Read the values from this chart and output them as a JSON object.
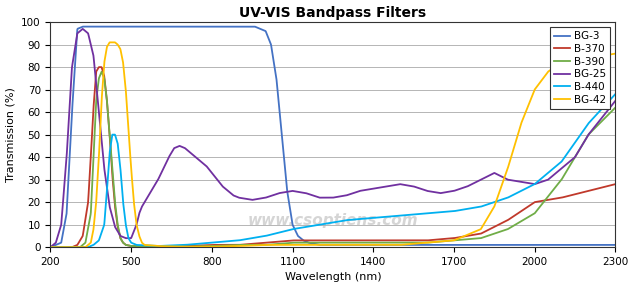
{
  "title": "UV-VIS Bandpass Filters",
  "xlabel": "Wavelength (nm)",
  "ylabel": "Transmission (%)",
  "xlim": [
    200,
    2300
  ],
  "ylim": [
    0,
    100
  ],
  "xticks": [
    200,
    500,
    800,
    1100,
    1400,
    1700,
    2000,
    2300
  ],
  "yticks": [
    0,
    10,
    20,
    30,
    40,
    50,
    60,
    70,
    80,
    90,
    100
  ],
  "background_color": "#ffffff",
  "watermark": "www.csoptiens.com",
  "series": {
    "BG-3": {
      "color": "#4472C4",
      "points": [
        [
          200,
          0
        ],
        [
          240,
          2
        ],
        [
          260,
          15
        ],
        [
          280,
          60
        ],
        [
          300,
          97
        ],
        [
          320,
          98
        ],
        [
          340,
          98
        ],
        [
          360,
          98
        ],
        [
          380,
          98
        ],
        [
          400,
          98
        ],
        [
          420,
          98
        ],
        [
          440,
          98
        ],
        [
          460,
          98
        ],
        [
          480,
          98
        ],
        [
          500,
          98
        ],
        [
          520,
          98
        ],
        [
          540,
          98
        ],
        [
          560,
          98
        ],
        [
          580,
          98
        ],
        [
          600,
          98
        ],
        [
          620,
          98
        ],
        [
          640,
          98
        ],
        [
          660,
          98
        ],
        [
          680,
          98
        ],
        [
          700,
          98
        ],
        [
          720,
          98
        ],
        [
          740,
          98
        ],
        [
          760,
          98
        ],
        [
          780,
          98
        ],
        [
          800,
          98
        ],
        [
          820,
          98
        ],
        [
          840,
          98
        ],
        [
          860,
          98
        ],
        [
          880,
          98
        ],
        [
          900,
          98
        ],
        [
          920,
          98
        ],
        [
          940,
          98
        ],
        [
          960,
          98
        ],
        [
          980,
          97
        ],
        [
          1000,
          96
        ],
        [
          1020,
          90
        ],
        [
          1040,
          75
        ],
        [
          1060,
          50
        ],
        [
          1080,
          25
        ],
        [
          1100,
          10
        ],
        [
          1120,
          5
        ],
        [
          1140,
          3
        ],
        [
          1160,
          2
        ],
        [
          1200,
          1
        ],
        [
          1300,
          1
        ],
        [
          1400,
          1
        ],
        [
          1500,
          1
        ],
        [
          1600,
          1
        ],
        [
          1700,
          1
        ],
        [
          1800,
          1
        ],
        [
          1900,
          1
        ],
        [
          2000,
          1
        ],
        [
          2100,
          1
        ],
        [
          2200,
          1
        ],
        [
          2300,
          1
        ]
      ]
    },
    "B-370": {
      "color": "#C0392B",
      "points": [
        [
          200,
          0
        ],
        [
          280,
          0
        ],
        [
          300,
          1
        ],
        [
          320,
          5
        ],
        [
          340,
          20
        ],
        [
          350,
          40
        ],
        [
          360,
          62
        ],
        [
          370,
          78
        ],
        [
          380,
          80
        ],
        [
          390,
          80
        ],
        [
          400,
          76
        ],
        [
          410,
          65
        ],
        [
          420,
          50
        ],
        [
          430,
          32
        ],
        [
          440,
          18
        ],
        [
          450,
          9
        ],
        [
          460,
          4
        ],
        [
          470,
          2
        ],
        [
          480,
          1
        ],
        [
          500,
          0.5
        ],
        [
          600,
          0.2
        ],
        [
          700,
          0.5
        ],
        [
          800,
          1
        ],
        [
          900,
          1
        ],
        [
          1000,
          2
        ],
        [
          1100,
          3
        ],
        [
          1200,
          3
        ],
        [
          1300,
          3
        ],
        [
          1400,
          3
        ],
        [
          1500,
          3
        ],
        [
          1600,
          3
        ],
        [
          1700,
          4
        ],
        [
          1800,
          6
        ],
        [
          1900,
          12
        ],
        [
          2000,
          20
        ],
        [
          2100,
          22
        ],
        [
          2200,
          25
        ],
        [
          2300,
          28
        ]
      ]
    },
    "B-390": {
      "color": "#70AD47",
      "points": [
        [
          200,
          0
        ],
        [
          310,
          0
        ],
        [
          330,
          2
        ],
        [
          350,
          15
        ],
        [
          360,
          40
        ],
        [
          370,
          65
        ],
        [
          380,
          75
        ],
        [
          390,
          78
        ],
        [
          400,
          75
        ],
        [
          410,
          65
        ],
        [
          420,
          50
        ],
        [
          430,
          35
        ],
        [
          440,
          20
        ],
        [
          450,
          10
        ],
        [
          460,
          4
        ],
        [
          470,
          2
        ],
        [
          480,
          1
        ],
        [
          500,
          0.5
        ],
        [
          600,
          0.2
        ],
        [
          700,
          0.2
        ],
        [
          800,
          0.5
        ],
        [
          900,
          1
        ],
        [
          1000,
          1
        ],
        [
          1100,
          2
        ],
        [
          1200,
          2
        ],
        [
          1300,
          2
        ],
        [
          1400,
          2
        ],
        [
          1500,
          2
        ],
        [
          1600,
          2
        ],
        [
          1700,
          3
        ],
        [
          1800,
          4
        ],
        [
          1900,
          8
        ],
        [
          2000,
          15
        ],
        [
          2100,
          30
        ],
        [
          2200,
          50
        ],
        [
          2300,
          62
        ]
      ]
    },
    "BG-25": {
      "color": "#7030A0",
      "points": [
        [
          200,
          0
        ],
        [
          220,
          2
        ],
        [
          240,
          10
        ],
        [
          260,
          40
        ],
        [
          280,
          80
        ],
        [
          300,
          95
        ],
        [
          320,
          97
        ],
        [
          340,
          95
        ],
        [
          360,
          85
        ],
        [
          380,
          60
        ],
        [
          400,
          35
        ],
        [
          420,
          18
        ],
        [
          440,
          9
        ],
        [
          460,
          5
        ],
        [
          480,
          4
        ],
        [
          500,
          4
        ],
        [
          520,
          10
        ],
        [
          530,
          15
        ],
        [
          540,
          18
        ],
        [
          550,
          20
        ],
        [
          560,
          22
        ],
        [
          570,
          24
        ],
        [
          580,
          26
        ],
        [
          590,
          28
        ],
        [
          600,
          30
        ],
        [
          620,
          35
        ],
        [
          640,
          40
        ],
        [
          660,
          44
        ],
        [
          680,
          45
        ],
        [
          700,
          44
        ],
        [
          720,
          42
        ],
        [
          740,
          40
        ],
        [
          760,
          38
        ],
        [
          780,
          36
        ],
        [
          800,
          33
        ],
        [
          820,
          30
        ],
        [
          840,
          27
        ],
        [
          860,
          25
        ],
        [
          880,
          23
        ],
        [
          900,
          22
        ],
        [
          950,
          21
        ],
        [
          1000,
          22
        ],
        [
          1050,
          24
        ],
        [
          1100,
          25
        ],
        [
          1150,
          24
        ],
        [
          1200,
          22
        ],
        [
          1250,
          22
        ],
        [
          1300,
          23
        ],
        [
          1350,
          25
        ],
        [
          1400,
          26
        ],
        [
          1450,
          27
        ],
        [
          1500,
          28
        ],
        [
          1550,
          27
        ],
        [
          1600,
          25
        ],
        [
          1650,
          24
        ],
        [
          1700,
          25
        ],
        [
          1750,
          27
        ],
        [
          1800,
          30
        ],
        [
          1850,
          33
        ],
        [
          1900,
          30
        ],
        [
          1950,
          29
        ],
        [
          2000,
          28
        ],
        [
          2050,
          30
        ],
        [
          2100,
          35
        ],
        [
          2150,
          40
        ],
        [
          2200,
          50
        ],
        [
          2300,
          65
        ]
      ]
    },
    "B-440": {
      "color": "#00B0F0",
      "points": [
        [
          200,
          0
        ],
        [
          340,
          0
        ],
        [
          360,
          1
        ],
        [
          380,
          3
        ],
        [
          400,
          10
        ],
        [
          410,
          25
        ],
        [
          420,
          42
        ],
        [
          430,
          50
        ],
        [
          440,
          50
        ],
        [
          450,
          46
        ],
        [
          460,
          35
        ],
        [
          470,
          20
        ],
        [
          480,
          10
        ],
        [
          490,
          4
        ],
        [
          500,
          2
        ],
        [
          520,
          1
        ],
        [
          600,
          0.5
        ],
        [
          700,
          1
        ],
        [
          800,
          2
        ],
        [
          900,
          3
        ],
        [
          1000,
          5
        ],
        [
          1100,
          8
        ],
        [
          1200,
          10
        ],
        [
          1300,
          12
        ],
        [
          1400,
          13
        ],
        [
          1500,
          14
        ],
        [
          1600,
          15
        ],
        [
          1700,
          16
        ],
        [
          1800,
          18
        ],
        [
          1900,
          22
        ],
        [
          2000,
          28
        ],
        [
          2100,
          38
        ],
        [
          2200,
          55
        ],
        [
          2300,
          68
        ]
      ]
    },
    "BG-42": {
      "color": "#FFC000",
      "points": [
        [
          200,
          0
        ],
        [
          330,
          0
        ],
        [
          350,
          2
        ],
        [
          360,
          8
        ],
        [
          370,
          20
        ],
        [
          380,
          40
        ],
        [
          390,
          65
        ],
        [
          400,
          82
        ],
        [
          410,
          89
        ],
        [
          420,
          91
        ],
        [
          430,
          91
        ],
        [
          440,
          91
        ],
        [
          450,
          90
        ],
        [
          460,
          88
        ],
        [
          470,
          82
        ],
        [
          480,
          70
        ],
        [
          490,
          52
        ],
        [
          500,
          35
        ],
        [
          510,
          20
        ],
        [
          520,
          10
        ],
        [
          530,
          5
        ],
        [
          540,
          2
        ],
        [
          550,
          1
        ],
        [
          600,
          0.5
        ],
        [
          700,
          0.2
        ],
        [
          800,
          0.2
        ],
        [
          900,
          0.5
        ],
        [
          1000,
          1
        ],
        [
          1100,
          1
        ],
        [
          1200,
          1
        ],
        [
          1300,
          1
        ],
        [
          1400,
          1
        ],
        [
          1500,
          1
        ],
        [
          1600,
          2
        ],
        [
          1700,
          3
        ],
        [
          1800,
          8
        ],
        [
          1850,
          18
        ],
        [
          1900,
          35
        ],
        [
          1950,
          55
        ],
        [
          2000,
          70
        ],
        [
          2050,
          78
        ],
        [
          2100,
          82
        ],
        [
          2200,
          84
        ],
        [
          2300,
          86
        ]
      ]
    }
  },
  "legend_order": [
    "BG-3",
    "B-370",
    "B-390",
    "BG-25",
    "B-440",
    "BG-42"
  ]
}
